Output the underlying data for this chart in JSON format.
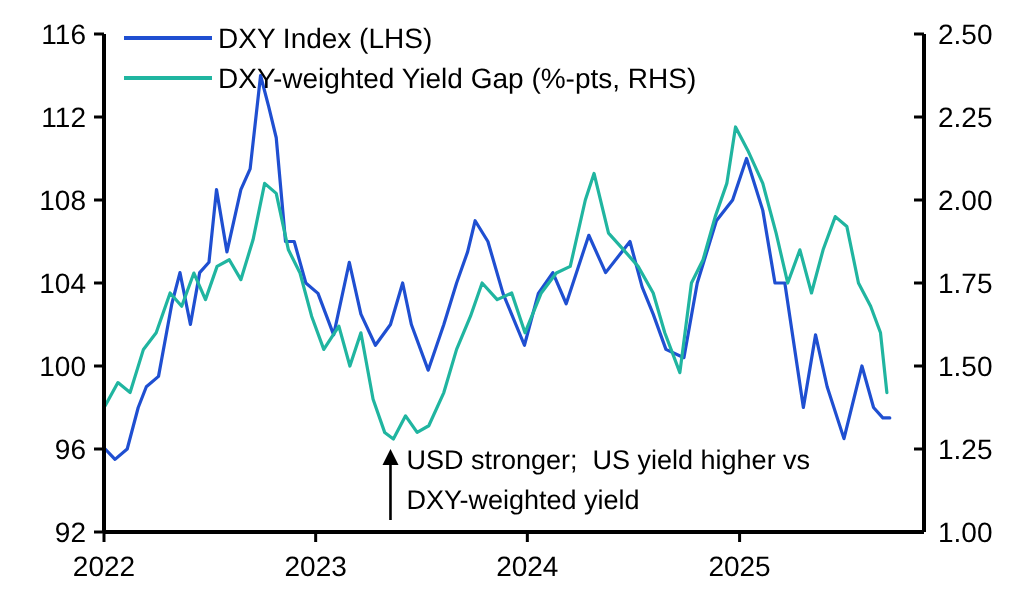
{
  "chart_data": {
    "type": "line",
    "legend": "top left",
    "marker": "none",
    "line_style": "solid",
    "xlim": [
      "2022-01-01",
      "2025-11-15"
    ],
    "xticks": [
      "2022",
      "2023",
      "2024",
      "2025"
    ],
    "ylim": [
      92,
      116
    ],
    "yticks": [
      92,
      96,
      100,
      104,
      108,
      112,
      116
    ],
    "y2lim": [
      1,
      2.5
    ],
    "y2ticks": [
      {
        "value": 1,
        "label": "1.00"
      },
      {
        "value": 1.25,
        "label": "1.25"
      },
      {
        "value": 1.5,
        "label": "1.50"
      },
      {
        "value": 1.75,
        "label": "1.75"
      },
      {
        "value": 2,
        "label": "2.00"
      },
      {
        "value": 2.25,
        "label": "2.25"
      },
      {
        "value": 2.5,
        "label": "2.50"
      }
    ],
    "annotations": [
      {
        "text": "USD stronger;  US yield higher vs\nDXY-weighted yield",
        "x": "2023-05-10",
        "y": 96
      }
    ],
    "series": [
      {
        "name": "DXY Index (LHS)",
        "color": "#1f4fd1",
        "x": [
          "2022-01-03",
          "2022-01-20",
          "2022-02-10",
          "2022-03-01",
          "2022-03-15",
          "2022-04-05",
          "2022-04-28",
          "2022-05-12",
          "2022-05-30",
          "2022-06-15",
          "2022-07-01",
          "2022-07-14",
          "2022-08-01",
          "2022-08-25",
          "2022-09-10",
          "2022-09-28",
          "2022-10-12",
          "2022-10-25",
          "2022-11-10",
          "2022-11-25",
          "2022-12-15",
          "2023-01-05",
          "2023-02-01",
          "2023-02-28",
          "2023-03-20",
          "2023-04-14",
          "2023-05-10",
          "2023-05-31",
          "2023-06-15",
          "2023-07-14",
          "2023-08-10",
          "2023-09-01",
          "2023-09-20",
          "2023-10-03",
          "2023-10-25",
          "2023-11-20",
          "2023-12-27",
          "2024-01-20",
          "2024-02-14",
          "2024-03-08",
          "2024-04-16",
          "2024-05-15",
          "2024-06-26",
          "2024-07-17",
          "2024-08-05",
          "2024-08-27",
          "2024-09-27",
          "2024-10-20",
          "2024-11-22",
          "2024-12-20",
          "2025-01-13",
          "2025-02-10",
          "2025-03-03",
          "2025-03-20",
          "2025-04-21",
          "2025-05-12",
          "2025-06-01",
          "2025-06-30",
          "2025-07-31",
          "2025-08-20",
          "2025-09-05",
          "2025-09-17"
        ],
        "values": [
          96,
          95.5,
          96,
          98,
          99,
          99.5,
          103,
          104.5,
          102,
          104.5,
          105,
          108.5,
          105.5,
          108.5,
          109.5,
          114,
          112.5,
          111,
          106,
          106,
          104,
          103.5,
          101.5,
          105,
          102.5,
          101,
          102,
          104,
          102,
          99.8,
          102,
          104,
          105.5,
          107,
          106,
          103.5,
          101,
          103.5,
          104.5,
          103,
          106.3,
          104.5,
          106,
          103.8,
          102.5,
          100.8,
          100.4,
          104,
          107,
          108,
          110,
          107.5,
          104,
          104,
          98,
          101.5,
          99,
          96.5,
          100,
          98,
          97.5,
          97.5
        ]
      },
      {
        "name": "DXY-weighted Yield Gap (%-pts, RHS)",
        "color": "#20b5a0",
        "axis": "y2",
        "x": [
          "2022-01-03",
          "2022-01-25",
          "2022-02-15",
          "2022-03-10",
          "2022-04-01",
          "2022-04-25",
          "2022-05-15",
          "2022-06-05",
          "2022-06-25",
          "2022-07-15",
          "2022-08-05",
          "2022-08-25",
          "2022-09-15",
          "2022-10-05",
          "2022-10-25",
          "2022-11-15",
          "2022-12-05",
          "2022-12-25",
          "2023-01-15",
          "2023-02-10",
          "2023-03-01",
          "2023-03-20",
          "2023-04-10",
          "2023-04-30",
          "2023-05-15",
          "2023-06-05",
          "2023-06-25",
          "2023-07-15",
          "2023-08-10",
          "2023-09-01",
          "2023-09-25",
          "2023-10-15",
          "2023-11-10",
          "2023-12-05",
          "2023-12-28",
          "2024-01-25",
          "2024-02-20",
          "2024-03-15",
          "2024-04-10",
          "2024-04-25",
          "2024-05-20",
          "2024-06-15",
          "2024-07-10",
          "2024-08-05",
          "2024-08-25",
          "2024-09-20",
          "2024-10-10",
          "2024-10-30",
          "2024-11-20",
          "2024-12-10",
          "2024-12-25",
          "2025-01-15",
          "2025-02-10",
          "2025-03-05",
          "2025-03-25",
          "2025-04-15",
          "2025-05-05",
          "2025-05-25",
          "2025-06-15",
          "2025-07-05",
          "2025-07-25",
          "2025-08-15",
          "2025-09-01",
          "2025-09-12"
        ],
        "values": [
          1.38,
          1.45,
          1.42,
          1.55,
          1.6,
          1.72,
          1.68,
          1.78,
          1.7,
          1.8,
          1.82,
          1.76,
          1.88,
          2.05,
          2.02,
          1.85,
          1.78,
          1.65,
          1.55,
          1.62,
          1.5,
          1.6,
          1.4,
          1.3,
          1.28,
          1.35,
          1.3,
          1.32,
          1.42,
          1.55,
          1.65,
          1.75,
          1.7,
          1.72,
          1.6,
          1.72,
          1.78,
          1.8,
          2.0,
          2.08,
          1.9,
          1.85,
          1.8,
          1.72,
          1.6,
          1.48,
          1.75,
          1.82,
          1.95,
          2.05,
          2.22,
          2.15,
          2.05,
          1.9,
          1.75,
          1.85,
          1.72,
          1.85,
          1.95,
          1.92,
          1.75,
          1.68,
          1.6,
          1.42
        ]
      }
    ]
  }
}
